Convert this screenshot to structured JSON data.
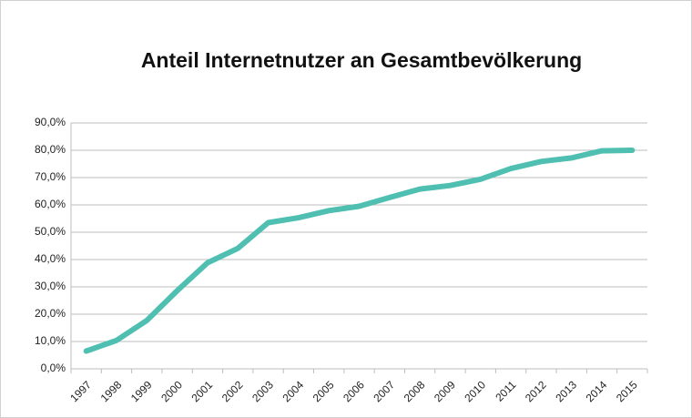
{
  "chart_data": {
    "type": "line",
    "title": "Anteil Internetnutzer an Gesamtbevölkerung",
    "categories": [
      "1997",
      "1998",
      "1999",
      "2000",
      "2001",
      "2002",
      "2003",
      "2004",
      "2005",
      "2006",
      "2007",
      "2008",
      "2009",
      "2010",
      "2011",
      "2012",
      "2013",
      "2014",
      "2015"
    ],
    "series": [
      {
        "name": "Anteil Internetnutzer",
        "color": "#4ebfb0",
        "values": [
          6.5,
          10.4,
          17.7,
          28.6,
          38.8,
          44.1,
          53.5,
          55.3,
          57.9,
          59.5,
          62.7,
          65.8,
          67.1,
          69.4,
          73.3,
          75.9,
          77.2,
          79.8,
          80.0
        ]
      }
    ],
    "ylim": [
      0,
      90
    ],
    "yticks": [
      {
        "value": 0,
        "label": "0,0%"
      },
      {
        "value": 10,
        "label": "10,0%"
      },
      {
        "value": 20,
        "label": "20,0%"
      },
      {
        "value": 30,
        "label": "30,0%"
      },
      {
        "value": 40,
        "label": "40,0%"
      },
      {
        "value": 50,
        "label": "50,0%"
      },
      {
        "value": 60,
        "label": "60,0%"
      },
      {
        "value": 70,
        "label": "70,0%"
      },
      {
        "value": 80,
        "label": "80,0%"
      },
      {
        "value": 90,
        "label": "90,0%"
      }
    ],
    "grid": true,
    "legend": false
  }
}
